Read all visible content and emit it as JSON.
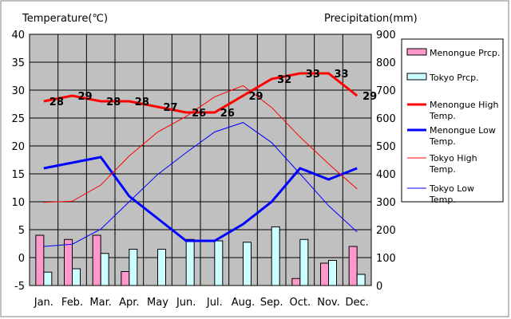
{
  "chart_data": {
    "type": "bar+line",
    "title": "",
    "left_axis_label": "Temperature(℃)",
    "right_axis_label": "Precipitation(mm)",
    "left_ylim": [
      -5,
      40
    ],
    "left_ticks": [
      -5,
      0,
      5,
      10,
      15,
      20,
      25,
      30,
      35,
      40
    ],
    "right_ylim": [
      0,
      900
    ],
    "right_ticks": [
      0,
      100,
      200,
      300,
      400,
      500,
      600,
      700,
      800,
      900
    ],
    "categories": [
      "Jan.",
      "Feb.",
      "Mar.",
      "Apr.",
      "May",
      "Jun.",
      "Jul.",
      "Aug.",
      "Sep.",
      "Oct.",
      "Nov.",
      "Dec."
    ],
    "grid": true,
    "legend_position": "right",
    "bar_series": [
      {
        "name": "Menongue Prcp.",
        "color": "#ff99cc",
        "values": [
          180,
          165,
          180,
          50,
          0,
          0,
          0,
          0,
          0,
          25,
          80,
          140
        ]
      },
      {
        "name": "Tokyo Prcp.",
        "color": "#ccffff",
        "values": [
          48,
          60,
          115,
          130,
          130,
          165,
          160,
          155,
          210,
          165,
          90,
          40
        ]
      }
    ],
    "line_series": [
      {
        "name": "Menongue High Temp.",
        "color": "#ff0000",
        "width": 3,
        "values": [
          28,
          29,
          28,
          28,
          27,
          26,
          26,
          29,
          32,
          33,
          33,
          29
        ]
      },
      {
        "name": "Menongue Low Temp.",
        "color": "#0000ff",
        "width": 3,
        "values": [
          16,
          17,
          18,
          11,
          7,
          3,
          3,
          6,
          10,
          16,
          14,
          16
        ]
      },
      {
        "name": "Tokyo High Temp.",
        "color": "#ff0000",
        "width": 1,
        "values": [
          9.9,
          10.1,
          13,
          18.2,
          22.5,
          25.3,
          28.8,
          30.8,
          26.9,
          21.6,
          16.8,
          12.3
        ]
      },
      {
        "name": "Tokyo Low Temp.",
        "color": "#0000ff",
        "width": 1,
        "values": [
          2,
          2.4,
          5.1,
          10,
          14.9,
          18.8,
          22.5,
          24.2,
          20.6,
          15,
          9.3,
          4.6
        ]
      }
    ],
    "data_labels": {
      "series": "Menongue High Temp.",
      "values": [
        "28",
        "29",
        "28",
        "28",
        "27",
        "26",
        "26",
        "29",
        "32",
        "33",
        "33",
        "29"
      ]
    }
  },
  "legend": {
    "items": [
      {
        "key": "menongue-prcp",
        "type": "bar",
        "color": "#ff99cc",
        "lines": [
          "Menongue Prcp."
        ]
      },
      {
        "key": "tokyo-prcp",
        "type": "bar",
        "color": "#ccffff",
        "lines": [
          "Tokyo Prcp."
        ]
      },
      {
        "key": "menongue-high",
        "type": "line",
        "color": "#ff0000",
        "width": 3,
        "lines": [
          "Menongue High",
          "Temp."
        ]
      },
      {
        "key": "menongue-low",
        "type": "line",
        "color": "#0000ff",
        "width": 3,
        "lines": [
          "Menongue Low",
          "Temp."
        ]
      },
      {
        "key": "tokyo-high",
        "type": "line",
        "color": "#ff0000",
        "width": 1,
        "lines": [
          "Tokyo High",
          "Temp."
        ]
      },
      {
        "key": "tokyo-low",
        "type": "line",
        "color": "#0000ff",
        "width": 1,
        "lines": [
          "Tokyo Low",
          "Temp."
        ]
      }
    ]
  },
  "colors": {
    "plot_background": "#c0c0c0",
    "grid": "#000000"
  }
}
